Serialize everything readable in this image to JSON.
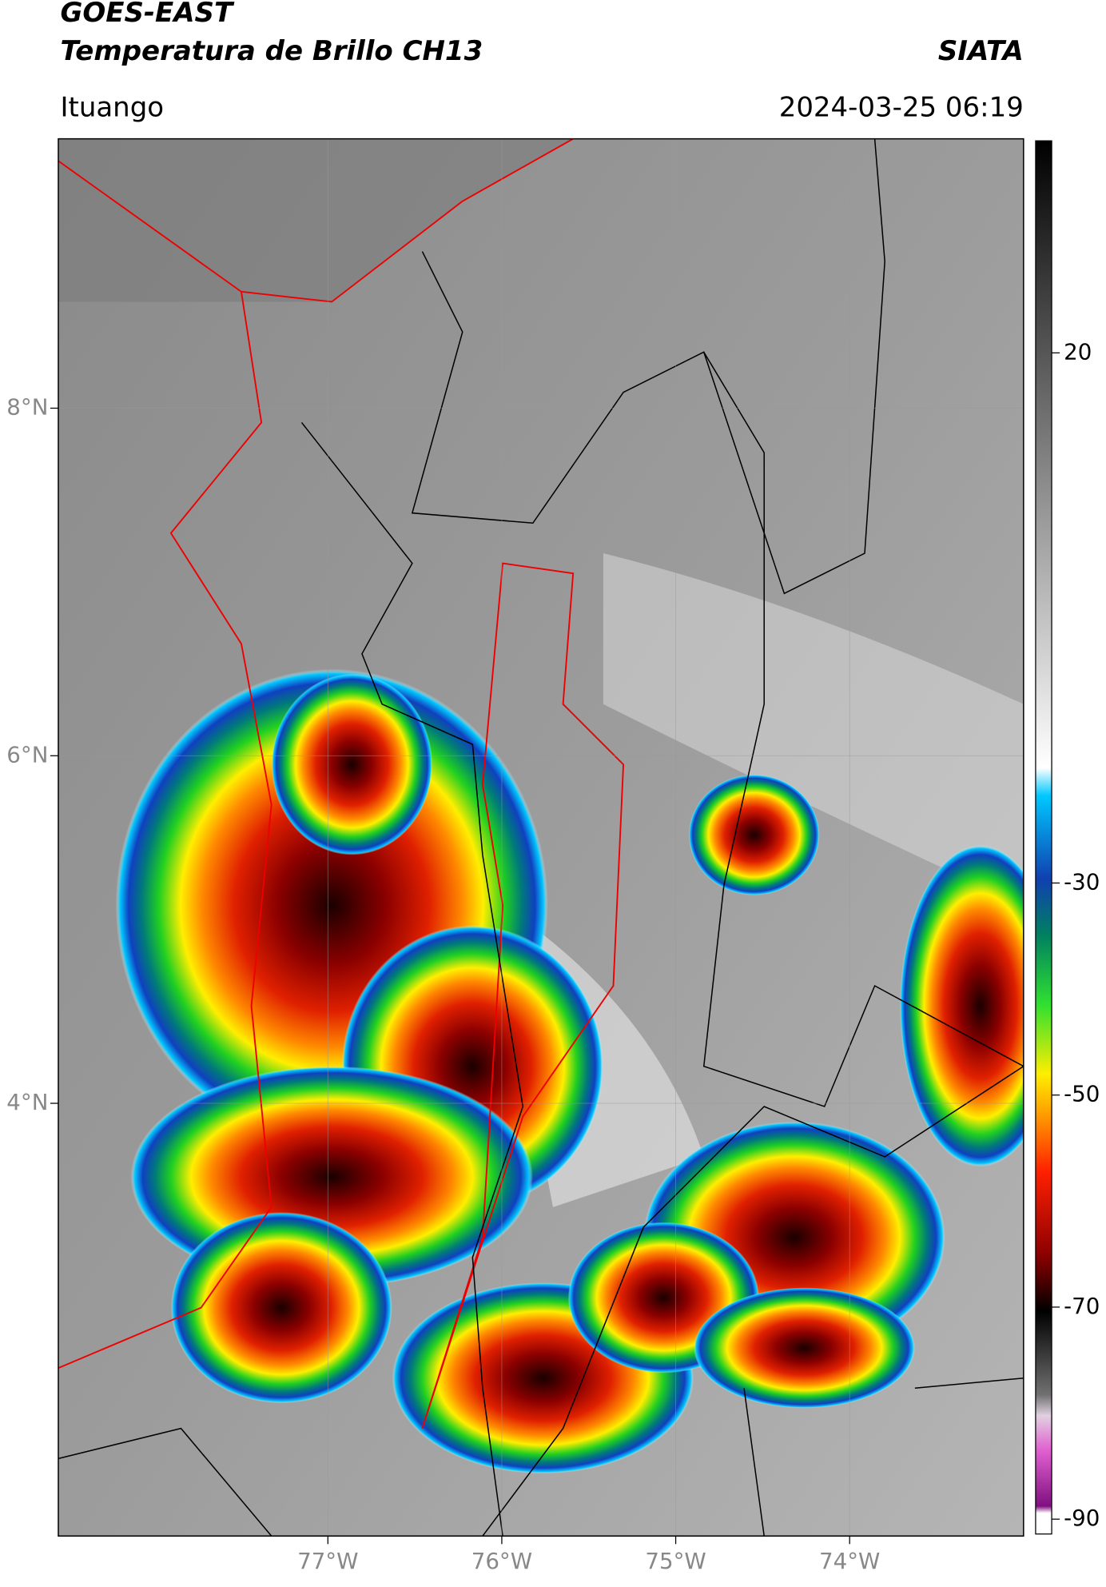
{
  "header": {
    "title": "GOES-EAST",
    "subtitle": "Temperatura de Brillo CH13",
    "brand": "SIATA",
    "location": "Ituango",
    "datetime": "2024-03-25 06:19"
  },
  "map": {
    "xlim": [
      -78.55,
      -73.0
    ],
    "ylim": [
      1.51,
      9.55
    ],
    "xticks": [
      {
        "value": -77,
        "label": "77°W"
      },
      {
        "value": -76,
        "label": "76°W"
      },
      {
        "value": -75,
        "label": "75°W"
      },
      {
        "value": -74,
        "label": "74°W"
      }
    ],
    "yticks": [
      {
        "value": 8,
        "label": "8°N"
      },
      {
        "value": 6,
        "label": "6°N"
      },
      {
        "value": 4,
        "label": "4°N"
      }
    ]
  },
  "colorbar": {
    "lim": [
      -91.4,
      40
    ],
    "ticks": [
      20,
      -30,
      -50,
      -70,
      -90
    ]
  }
}
